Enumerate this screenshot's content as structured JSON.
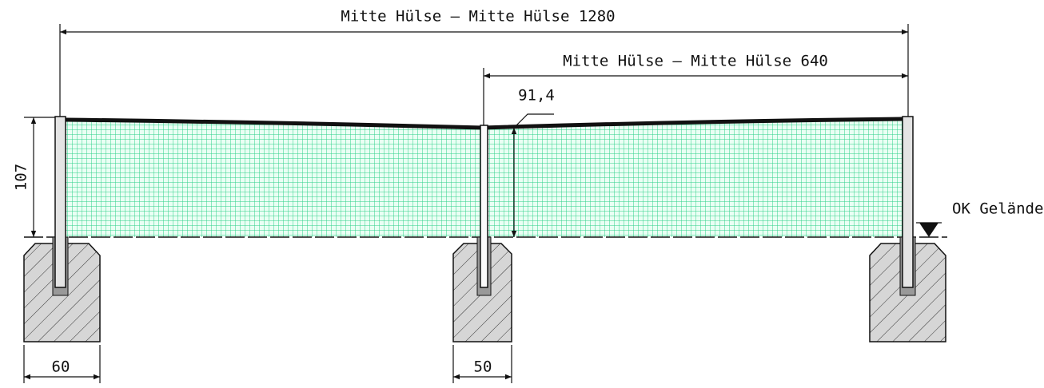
{
  "dimensions": {
    "total": "Mitte Hülse – Mitte Hülse 1280",
    "half": "Mitte Hülse – Mitte Hülse 640",
    "net_height_middle": "91,4",
    "net_height_post": "107",
    "ground": "OK Gelände",
    "foundation_outer": "60",
    "foundation_middle": "50"
  }
}
